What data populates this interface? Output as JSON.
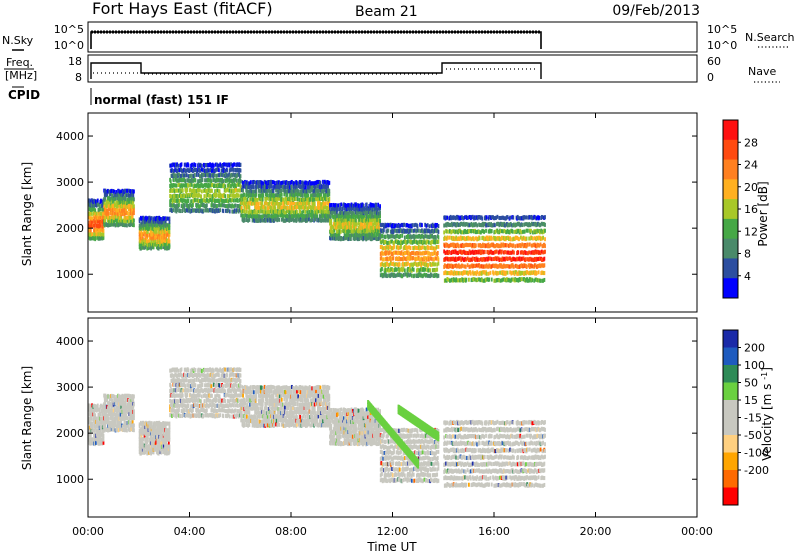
{
  "header": {
    "station": "Fort Hays East (fitACF)",
    "beam": "Beam 21",
    "date": "09/Feb/2013"
  },
  "noise_panel": {
    "left_label": "N.Sky",
    "right_label": "N.Search",
    "left_ticks": [
      "10^5",
      "10^0"
    ],
    "right_ticks": [
      "10^5",
      "10^0"
    ]
  },
  "freq_panel": {
    "left_label_line1": "Freq.",
    "left_label_line2": "[MHz]",
    "right_label": "Nave",
    "left_ticks": [
      "18",
      "8"
    ],
    "right_ticks": [
      "60",
      "0"
    ]
  },
  "cpid": {
    "label": "CPID",
    "program": "normal (fast) 151 IF"
  },
  "colors": {
    "power_scale": [
      "#0000ff",
      "#2c4ea0",
      "#4a8a6a",
      "#46a846",
      "#a8c828",
      "#ffb020",
      "#ff8020",
      "#ff4a10",
      "#ff1010"
    ],
    "velocity_scale": [
      "#ff0000",
      "#ff6a00",
      "#ffa500",
      "#ffd080",
      "#c8c8c0",
      "#c8c8c0",
      "#6ad040",
      "#2e8b57",
      "#1e5bbf",
      "#1a2aa8"
    ]
  },
  "chart_data": [
    {
      "type": "heatmap",
      "title": "",
      "ylabel": "Slant Range [km]",
      "xlabel": "",
      "xlim": [
        "00:00",
        "00:00"
      ],
      "ylim": [
        180,
        4500
      ],
      "yticks": [
        "1000",
        "2000",
        "3000",
        "4000"
      ],
      "colorbar": {
        "label": "Power [dB]",
        "ticks": [
          "4",
          "8",
          "12",
          "16",
          "20",
          "24",
          "28"
        ],
        "range": [
          0,
          30
        ]
      },
      "traces": [
        {
          "from_hour": 0.0,
          "to_hour": 0.6,
          "range_km": [
            1800,
            2700
          ],
          "peak_db": 26
        },
        {
          "from_hour": 0.6,
          "to_hour": 1.8,
          "range_km": [
            2100,
            2900
          ],
          "peak_db": 22
        },
        {
          "from_hour": 2.0,
          "to_hour": 3.2,
          "range_km": [
            1600,
            2300
          ],
          "peak_db": 22
        },
        {
          "from_hour": 3.2,
          "to_hour": 6.0,
          "range_km": [
            2400,
            3500
          ],
          "peak_db": 16
        },
        {
          "from_hour": 6.0,
          "to_hour": 9.5,
          "range_km": [
            2200,
            3100
          ],
          "peak_db": 18
        },
        {
          "from_hour": 9.5,
          "to_hour": 11.5,
          "range_km": [
            1800,
            2600
          ],
          "peak_db": 18
        },
        {
          "from_hour": 11.5,
          "to_hour": 13.8,
          "range_km": [
            1000,
            2200
          ],
          "peak_db": 22
        },
        {
          "from_hour": 14.0,
          "to_hour": 18.0,
          "range_km": [
            900,
            2400
          ],
          "peak_db": 29
        }
      ]
    },
    {
      "type": "heatmap",
      "title": "",
      "ylabel": "Slant Range [km]",
      "xlabel": "Time UT",
      "xlim": [
        "00:00",
        "00:00"
      ],
      "xticks": [
        "00:00",
        "04:00",
        "08:00",
        "12:00",
        "16:00",
        "20:00",
        "00:00"
      ],
      "ylim": [
        180,
        4500
      ],
      "yticks": [
        "1000",
        "2000",
        "3000",
        "4000"
      ],
      "colorbar": {
        "label": "Velocity [m s^-1]",
        "ticks": [
          "200",
          "100",
          "50",
          "15",
          "-15",
          "-50",
          "-100",
          "-200"
        ],
        "range": [
          -250,
          250
        ]
      },
      "dominant_velocity": "-15 to 15 (ground scatter)",
      "features": [
        {
          "from_hour": 11.0,
          "to_hour": 13.0,
          "range_km": [
            1300,
            2600
          ],
          "velocity": "50"
        },
        {
          "from_hour": 12.2,
          "to_hour": 13.8,
          "range_km": [
            1900,
            2500
          ],
          "velocity": "50"
        }
      ]
    }
  ]
}
